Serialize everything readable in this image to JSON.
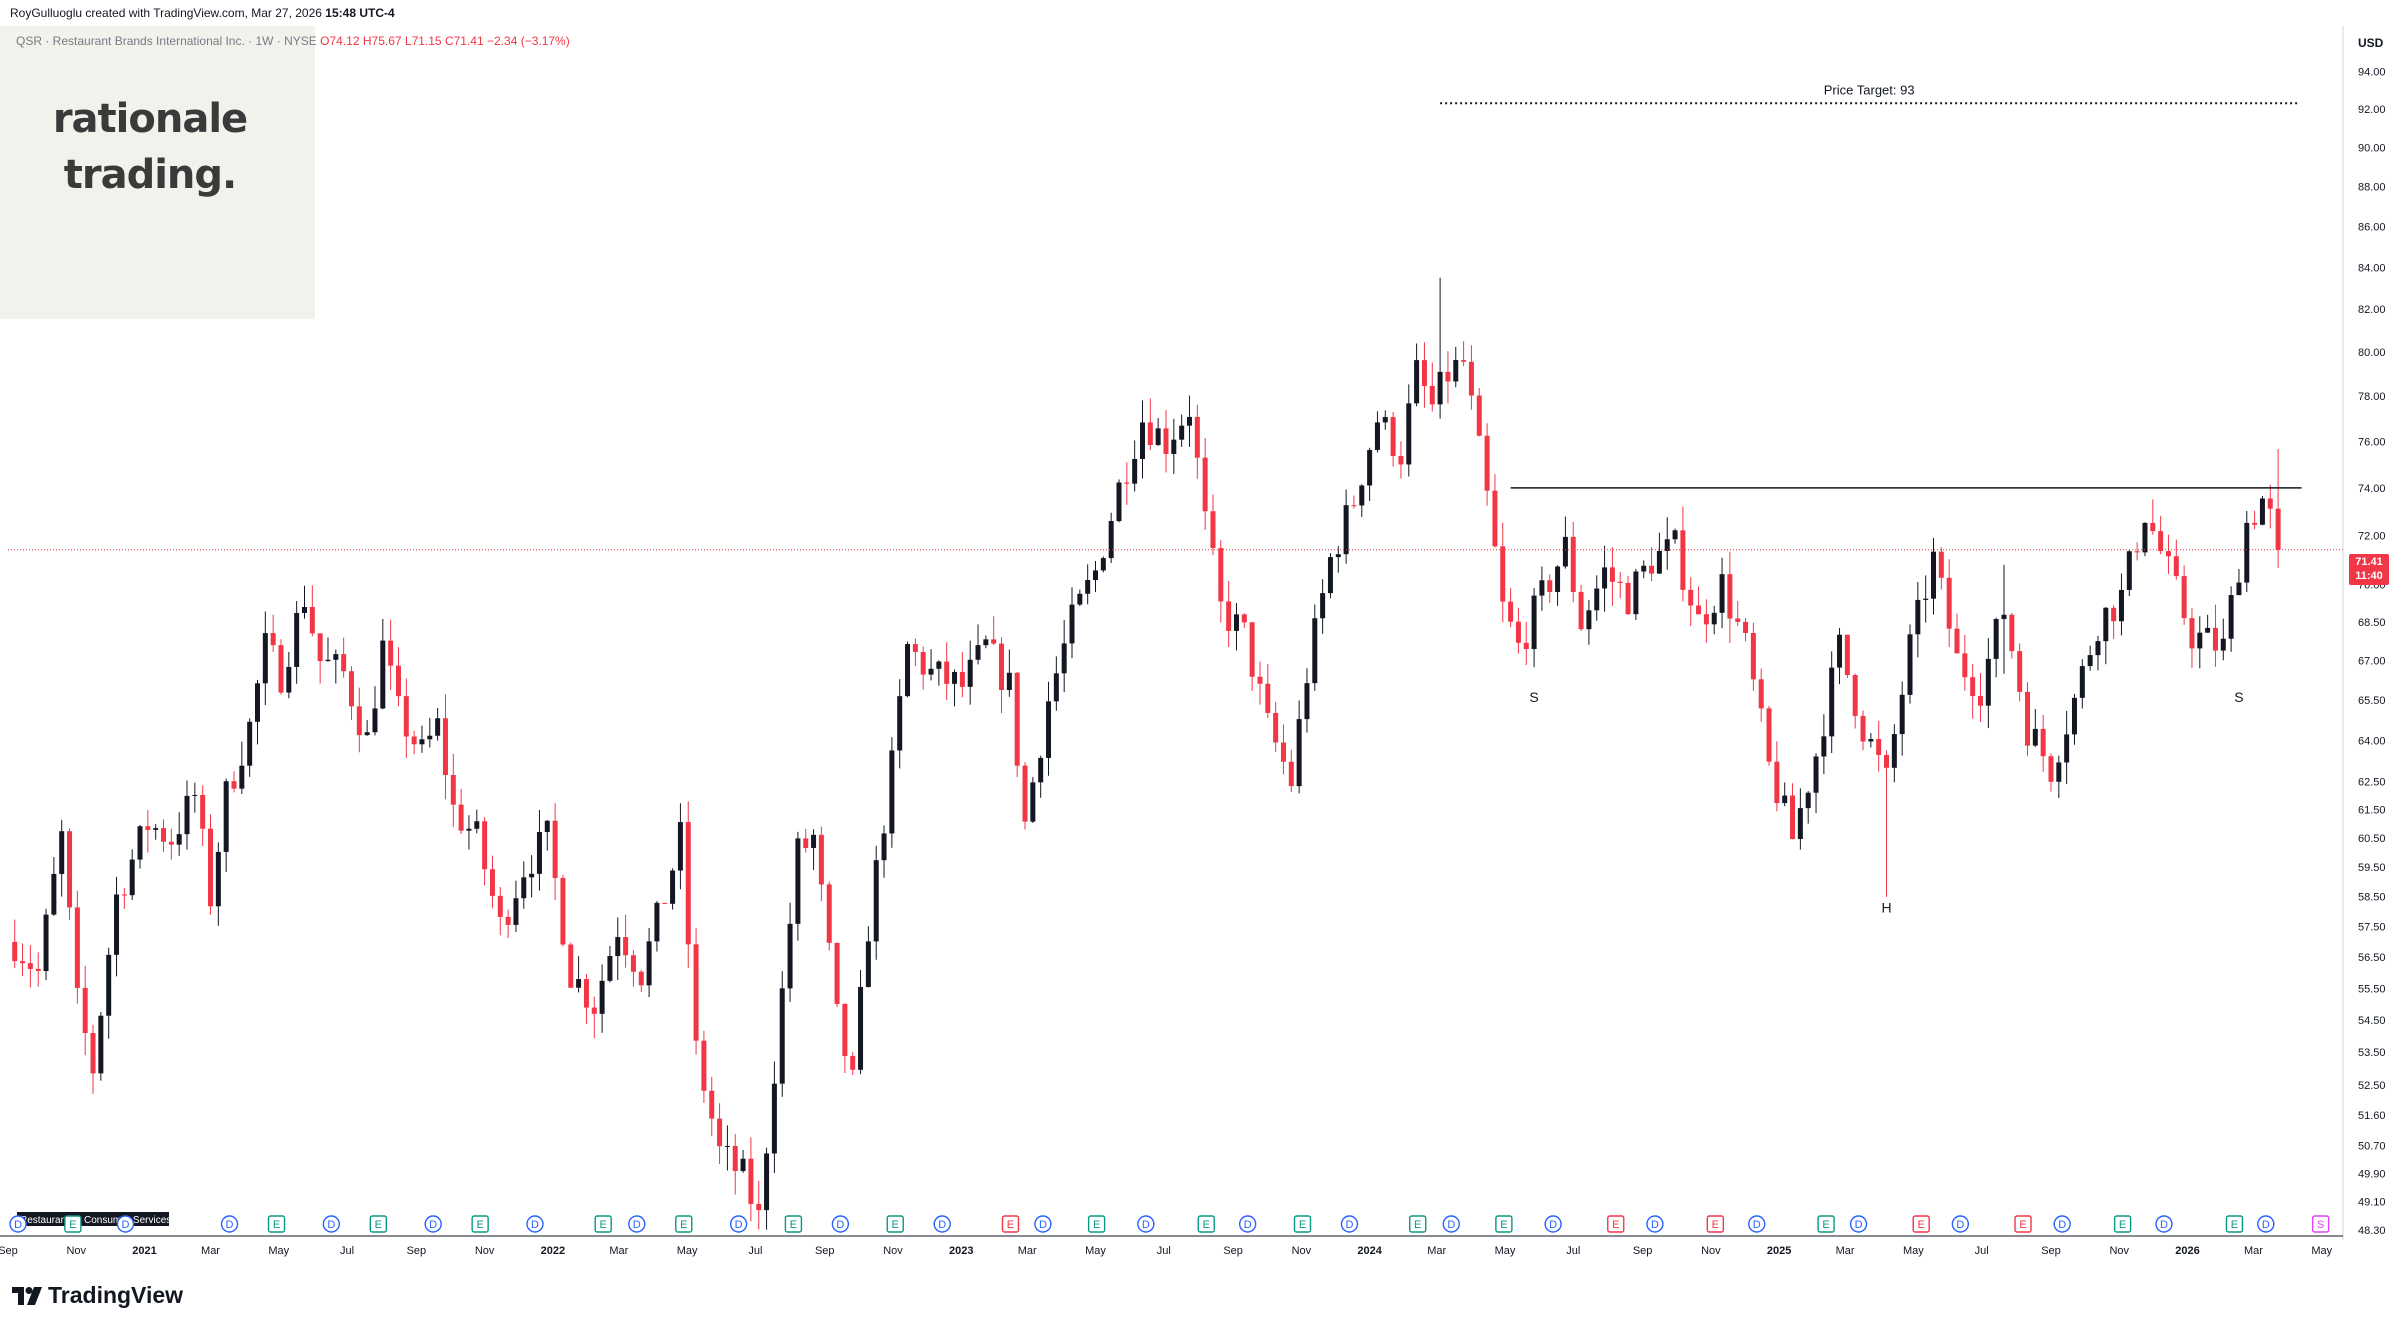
{
  "header": {
    "created_by": "RoyGulluoglu created with TradingView.com, Mar 27, 2026",
    "time": "15:48 UTC-4",
    "symbol_line": "QSR · Restaurant Brands International Inc. · 1W · NYSE",
    "open": "O74.12",
    "high": "H75.67",
    "low": "L71.15",
    "close": "C71.41",
    "change": "−2.34 (−3.17%)"
  },
  "logo": {
    "line1": "rationale",
    "line2": "trading."
  },
  "footer": {
    "brand": "TradingView"
  },
  "axis": {
    "currency": "USD"
  },
  "last_price": {
    "value": "71.41",
    "countdown": "11:40"
  },
  "colors": {
    "up": "#131722",
    "down": "#f23645",
    "accent": "#f23645",
    "dividend": "#2962ff",
    "earnings": "#089981",
    "earnings_neg": "#f23645",
    "split": "#e040fb"
  },
  "chart_data": {
    "type": "candlestick",
    "symbol": "QSR",
    "interval": "1W",
    "y_scale": "log",
    "ylim": [
      48.3,
      96.5
    ],
    "x_range": [
      "2020-09-01",
      "2026-05-20"
    ],
    "grid": false,
    "y_ticks": [
      "48.30",
      "49.10",
      "49.90",
      "50.70",
      "51.60",
      "52.50",
      "53.50",
      "54.50",
      "55.50",
      "56.50",
      "57.50",
      "58.50",
      "59.50",
      "60.50",
      "61.50",
      "62.50",
      "64.00",
      "65.50",
      "67.00",
      "68.50",
      "70.00",
      "72.00",
      "74.00",
      "76.00",
      "78.00",
      "80.00",
      "82.00",
      "84.00",
      "86.00",
      "88.00",
      "90.00",
      "92.00",
      "94.00"
    ],
    "x_ticks": [
      {
        "label": "Sep",
        "date": "2020-09-01"
      },
      {
        "label": "Nov",
        "date": "2020-11-01"
      },
      {
        "label": "2021",
        "date": "2021-01-01"
      },
      {
        "label": "Mar",
        "date": "2021-03-01"
      },
      {
        "label": "May",
        "date": "2021-05-01"
      },
      {
        "label": "Jul",
        "date": "2021-07-01"
      },
      {
        "label": "Sep",
        "date": "2021-09-01"
      },
      {
        "label": "Nov",
        "date": "2021-11-01"
      },
      {
        "label": "2022",
        "date": "2022-01-01"
      },
      {
        "label": "Mar",
        "date": "2022-03-01"
      },
      {
        "label": "May",
        "date": "2022-05-01"
      },
      {
        "label": "Jul",
        "date": "2022-07-01"
      },
      {
        "label": "Sep",
        "date": "2022-09-01"
      },
      {
        "label": "Nov",
        "date": "2022-11-01"
      },
      {
        "label": "2023",
        "date": "2023-01-01"
      },
      {
        "label": "Mar",
        "date": "2023-03-01"
      },
      {
        "label": "May",
        "date": "2023-05-01"
      },
      {
        "label": "Jul",
        "date": "2023-07-01"
      },
      {
        "label": "Sep",
        "date": "2023-09-01"
      },
      {
        "label": "Nov",
        "date": "2023-11-01"
      },
      {
        "label": "2024",
        "date": "2024-01-01"
      },
      {
        "label": "Mar",
        "date": "2024-03-01"
      },
      {
        "label": "May",
        "date": "2024-05-01"
      },
      {
        "label": "Jul",
        "date": "2024-07-01"
      },
      {
        "label": "Sep",
        "date": "2024-09-01"
      },
      {
        "label": "Nov",
        "date": "2024-11-01"
      },
      {
        "label": "2025",
        "date": "2025-01-01"
      },
      {
        "label": "Mar",
        "date": "2025-03-01"
      },
      {
        "label": "May",
        "date": "2025-05-01"
      },
      {
        "label": "Jul",
        "date": "2025-07-01"
      },
      {
        "label": "Sep",
        "date": "2025-09-01"
      },
      {
        "label": "Nov",
        "date": "2025-11-01"
      },
      {
        "label": "2026",
        "date": "2026-01-01"
      },
      {
        "label": "Mar",
        "date": "2026-03-01"
      },
      {
        "label": "May",
        "date": "2026-05-01"
      }
    ],
    "close_path": [
      [
        "2020-09-07",
        57.0
      ],
      [
        "2020-09-28",
        56.0
      ],
      [
        "2020-10-19",
        60.5
      ],
      [
        "2020-11-02",
        55.0
      ],
      [
        "2020-11-16",
        53.0
      ],
      [
        "2020-12-07",
        58.5
      ],
      [
        "2021-01-04",
        61.0
      ],
      [
        "2021-01-25",
        60.5
      ],
      [
        "2021-02-15",
        62.0
      ],
      [
        "2021-03-01",
        58.5
      ],
      [
        "2021-03-15",
        62.0
      ],
      [
        "2021-04-05",
        64.5
      ],
      [
        "2021-04-19",
        67.5
      ],
      [
        "2021-05-03",
        66.5
      ],
      [
        "2021-05-24",
        69.5
      ],
      [
        "2021-06-07",
        67.0
      ],
      [
        "2021-06-28",
        66.5
      ],
      [
        "2021-07-19",
        64.0
      ],
      [
        "2021-08-02",
        67.5
      ],
      [
        "2021-08-16",
        65.0
      ],
      [
        "2021-09-06",
        63.5
      ],
      [
        "2021-09-20",
        64.5
      ],
      [
        "2021-10-04",
        61.5
      ],
      [
        "2021-10-25",
        60.5
      ],
      [
        "2021-11-15",
        57.5
      ],
      [
        "2021-12-06",
        59.5
      ],
      [
        "2021-12-27",
        60.5
      ],
      [
        "2022-01-17",
        56.0
      ],
      [
        "2022-02-07",
        55.0
      ],
      [
        "2022-02-28",
        57.5
      ],
      [
        "2022-03-21",
        56.0
      ],
      [
        "2022-04-11",
        58.5
      ],
      [
        "2022-04-25",
        60.5
      ],
      [
        "2022-05-09",
        53.5
      ],
      [
        "2022-05-30",
        50.5
      ],
      [
        "2022-06-20",
        49.8
      ],
      [
        "2022-07-04",
        48.6
      ],
      [
        "2022-07-18",
        53.0
      ],
      [
        "2022-08-08",
        60.0
      ],
      [
        "2022-08-22",
        60.5
      ],
      [
        "2022-09-12",
        54.5
      ],
      [
        "2022-09-26",
        52.5
      ],
      [
        "2022-10-10",
        57.5
      ],
      [
        "2022-10-31",
        63.0
      ],
      [
        "2022-11-14",
        67.5
      ],
      [
        "2022-12-05",
        66.5
      ],
      [
        "2023-01-02",
        66.0
      ],
      [
        "2023-01-23",
        67.5
      ],
      [
        "2023-02-13",
        66.0
      ],
      [
        "2023-02-27",
        61.0
      ],
      [
        "2023-03-20",
        65.5
      ],
      [
        "2023-04-10",
        68.5
      ],
      [
        "2023-05-01",
        70.5
      ],
      [
        "2023-05-22",
        74.0
      ],
      [
        "2023-06-12",
        77.0
      ],
      [
        "2023-07-03",
        76.0
      ],
      [
        "2023-07-24",
        77.5
      ],
      [
        "2023-08-07",
        72.5
      ],
      [
        "2023-08-21",
        69.0
      ],
      [
        "2023-09-11",
        68.0
      ],
      [
        "2023-10-02",
        64.5
      ],
      [
        "2023-10-23",
        62.5
      ],
      [
        "2023-11-06",
        66.5
      ],
      [
        "2023-11-27",
        71.0
      ],
      [
        "2023-12-18",
        73.5
      ],
      [
        "2024-01-08",
        77.0
      ],
      [
        "2024-01-29",
        75.5
      ],
      [
        "2024-02-12",
        79.0
      ],
      [
        "2024-02-26",
        77.5
      ],
      [
        "2024-03-11",
        79.0
      ],
      [
        "2024-03-25",
        79.5
      ],
      [
        "2024-04-15",
        73.5
      ],
      [
        "2024-04-29",
        69.0
      ],
      [
        "2024-05-13",
        67.5
      ],
      [
        "2024-06-03",
        69.5
      ],
      [
        "2024-06-24",
        71.5
      ],
      [
        "2024-07-08",
        68.5
      ],
      [
        "2024-07-29",
        70.5
      ],
      [
        "2024-08-19",
        69.5
      ],
      [
        "2024-09-09",
        71.0
      ],
      [
        "2024-09-30",
        71.5
      ],
      [
        "2024-10-21",
        68.5
      ],
      [
        "2024-11-11",
        70.0
      ],
      [
        "2024-12-02",
        67.5
      ],
      [
        "2024-12-23",
        63.0
      ],
      [
        "2025-01-13",
        60.5
      ],
      [
        "2025-02-03",
        63.5
      ],
      [
        "2025-02-24",
        67.5
      ],
      [
        "2025-03-17",
        64.5
      ],
      [
        "2025-04-07",
        62.5
      ],
      [
        "2025-04-28",
        67.5
      ],
      [
        "2025-05-19",
        71.0
      ],
      [
        "2025-06-09",
        67.0
      ],
      [
        "2025-06-30",
        66.0
      ],
      [
        "2025-07-21",
        69.0
      ],
      [
        "2025-08-11",
        64.5
      ],
      [
        "2025-09-01",
        63.0
      ],
      [
        "2025-09-22",
        65.5
      ],
      [
        "2025-10-13",
        68.5
      ],
      [
        "2025-11-03",
        69.5
      ],
      [
        "2025-11-24",
        73.0
      ],
      [
        "2025-12-15",
        70.5
      ],
      [
        "2026-01-05",
        68.0
      ],
      [
        "2026-02-02",
        67.5
      ],
      [
        "2026-02-23",
        72.5
      ],
      [
        "2026-03-09",
        73.5
      ],
      [
        "2026-03-27",
        71.41
      ]
    ],
    "big_wicks": [
      {
        "date": "2024-03-04",
        "high": 83.5,
        "low": 77.0
      },
      {
        "date": "2025-04-07",
        "high": 63.5,
        "low": 58.5
      },
      {
        "date": "2025-07-21",
        "high": 70.8,
        "low": 66.5
      },
      {
        "date": "2026-03-20",
        "high": 75.67,
        "low": 71.15
      }
    ],
    "annotations": {
      "price_target": {
        "label": "Price Target: 93",
        "value": 93,
        "from": "2024-03-04",
        "to": "2026-04-10"
      },
      "neckline": {
        "value": 74,
        "from": "2024-05-06",
        "to": "2026-04-13"
      },
      "labels": [
        {
          "text": "S",
          "date": "2024-05-27",
          "value": 65.8
        },
        {
          "text": "H",
          "date": "2025-04-07",
          "value": 58.3
        },
        {
          "text": "S",
          "date": "2026-02-16",
          "value": 65.8
        }
      ]
    },
    "events": [
      {
        "t": "D",
        "date": "2020-09-10"
      },
      {
        "t": "E",
        "date": "2020-10-29"
      },
      {
        "t": "D",
        "date": "2020-12-15"
      },
      {
        "t": "D",
        "date": "2021-03-18"
      },
      {
        "t": "E",
        "date": "2021-04-29"
      },
      {
        "t": "D",
        "date": "2021-06-17"
      },
      {
        "t": "E",
        "date": "2021-07-29"
      },
      {
        "t": "D",
        "date": "2021-09-16"
      },
      {
        "t": "E",
        "date": "2021-10-28"
      },
      {
        "t": "D",
        "date": "2021-12-16"
      },
      {
        "t": "E",
        "date": "2022-02-15"
      },
      {
        "t": "D",
        "date": "2022-03-17"
      },
      {
        "t": "E",
        "date": "2022-04-28"
      },
      {
        "t": "D",
        "date": "2022-06-16"
      },
      {
        "t": "E",
        "date": "2022-08-04"
      },
      {
        "t": "D",
        "date": "2022-09-15"
      },
      {
        "t": "E",
        "date": "2022-11-03"
      },
      {
        "t": "D",
        "date": "2022-12-15"
      },
      {
        "t": "E",
        "date": "2023-02-14",
        "neg": true
      },
      {
        "t": "D",
        "date": "2023-03-15"
      },
      {
        "t": "E",
        "date": "2023-05-02"
      },
      {
        "t": "D",
        "date": "2023-06-15"
      },
      {
        "t": "E",
        "date": "2023-08-08"
      },
      {
        "t": "D",
        "date": "2023-09-14"
      },
      {
        "t": "E",
        "date": "2023-11-02"
      },
      {
        "t": "D",
        "date": "2023-12-14"
      },
      {
        "t": "E",
        "date": "2024-02-13"
      },
      {
        "t": "D",
        "date": "2024-03-14"
      },
      {
        "t": "E",
        "date": "2024-04-30"
      },
      {
        "t": "D",
        "date": "2024-06-13"
      },
      {
        "t": "E",
        "date": "2024-08-08",
        "neg": true
      },
      {
        "t": "D",
        "date": "2024-09-12"
      },
      {
        "t": "E",
        "date": "2024-11-05",
        "neg": true
      },
      {
        "t": "D",
        "date": "2024-12-12"
      },
      {
        "t": "E",
        "date": "2025-02-12"
      },
      {
        "t": "D",
        "date": "2025-03-13"
      },
      {
        "t": "E",
        "date": "2025-05-08",
        "neg": true
      },
      {
        "t": "D",
        "date": "2025-06-12"
      },
      {
        "t": "E",
        "date": "2025-08-07",
        "neg": true
      },
      {
        "t": "D",
        "date": "2025-09-11"
      },
      {
        "t": "E",
        "date": "2025-11-04"
      },
      {
        "t": "D",
        "date": "2025-12-11"
      },
      {
        "t": "E",
        "date": "2026-02-12"
      },
      {
        "t": "D",
        "date": "2026-03-12"
      },
      {
        "t": "S",
        "date": "2026-04-30"
      }
    ],
    "event_overlay_labels": [
      "Restaurants",
      "Consumer Services"
    ]
  }
}
